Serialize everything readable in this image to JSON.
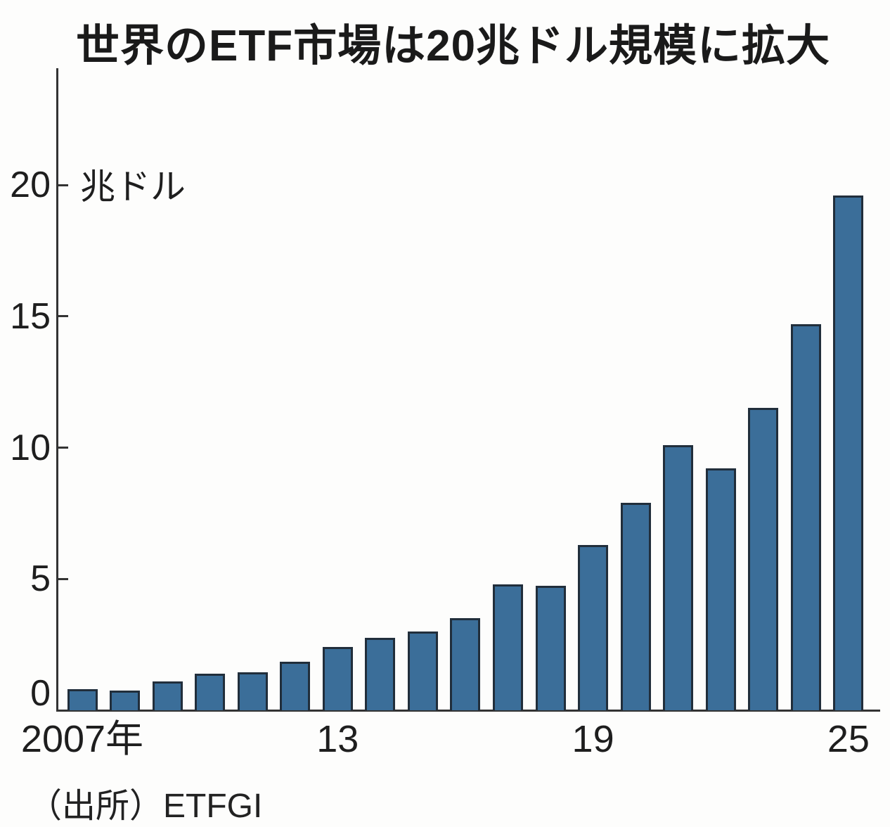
{
  "chart_data": {
    "type": "bar",
    "title": "世界のETF市場は20兆ドル規模に拡大",
    "unit_label": "兆ドル",
    "ylabel": "兆ドル",
    "xlabel": "",
    "source": "（出所）ETFGI",
    "categories": [
      2007,
      2008,
      2009,
      2010,
      2011,
      2012,
      2013,
      2014,
      2015,
      2016,
      2017,
      2018,
      2019,
      2020,
      2021,
      2022,
      2023,
      2024,
      2025
    ],
    "values": [
      0.8,
      0.75,
      1.1,
      1.4,
      1.45,
      1.85,
      2.4,
      2.75,
      3.0,
      3.5,
      4.8,
      4.75,
      6.3,
      7.9,
      10.1,
      9.2,
      11.5,
      14.7,
      19.6
    ],
    "y_ticks": [
      0,
      5,
      10,
      15,
      20
    ],
    "ylim": [
      0,
      24.4
    ],
    "x_tick_labels": [
      {
        "year": 2007,
        "label": "2007年"
      },
      {
        "year": 2013,
        "label": "13"
      },
      {
        "year": 2019,
        "label": "19"
      },
      {
        "year": 2025,
        "label": "25"
      }
    ],
    "grid": "off",
    "legend": "none",
    "bar_color": "#3b6e99",
    "bar_border_color": "#212e3b",
    "axis_color": "#333333",
    "text_color": "#1a1a1a",
    "background_color": "#fdfdfc"
  }
}
